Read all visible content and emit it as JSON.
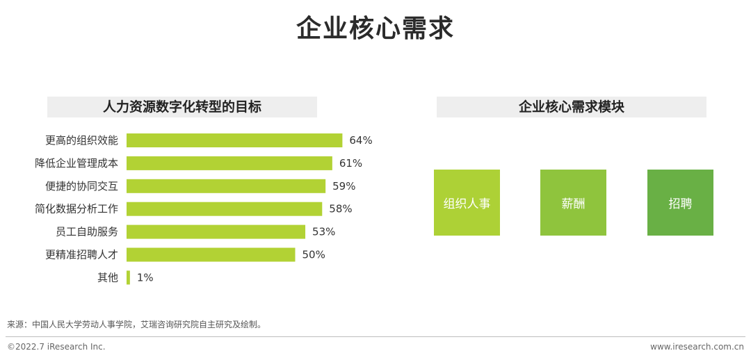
{
  "page": {
    "title": "企业核心需求",
    "source_note": "来源：中国人民大学劳动人事学院，艾瑞咨询研究院自主研究及绘制。",
    "copyright": "©2022.7 iResearch Inc.",
    "website": "www.iresearch.com.cn"
  },
  "left_section": {
    "header": "人力资源数字化转型的目标"
  },
  "right_section": {
    "header": "企业核心需求模块",
    "modules": [
      {
        "label": "组织人事",
        "color": "#add136"
      },
      {
        "label": "薪酬",
        "color": "#8fc43d"
      },
      {
        "label": "招聘",
        "color": "#69b045"
      }
    ]
  },
  "chart_data": {
    "type": "bar",
    "orientation": "horizontal",
    "categories": [
      "更高的组织效能",
      "降低企业管理成本",
      "便捷的协同交互",
      "简化数据分析工作",
      "员工自助服务",
      "更精准招聘人才",
      "其他"
    ],
    "values": [
      64,
      61,
      59,
      58,
      53,
      50,
      1
    ],
    "value_suffix": "%",
    "xlim": [
      0,
      100
    ],
    "bar_color": "#b2d234",
    "grid": false,
    "legend": "none"
  }
}
